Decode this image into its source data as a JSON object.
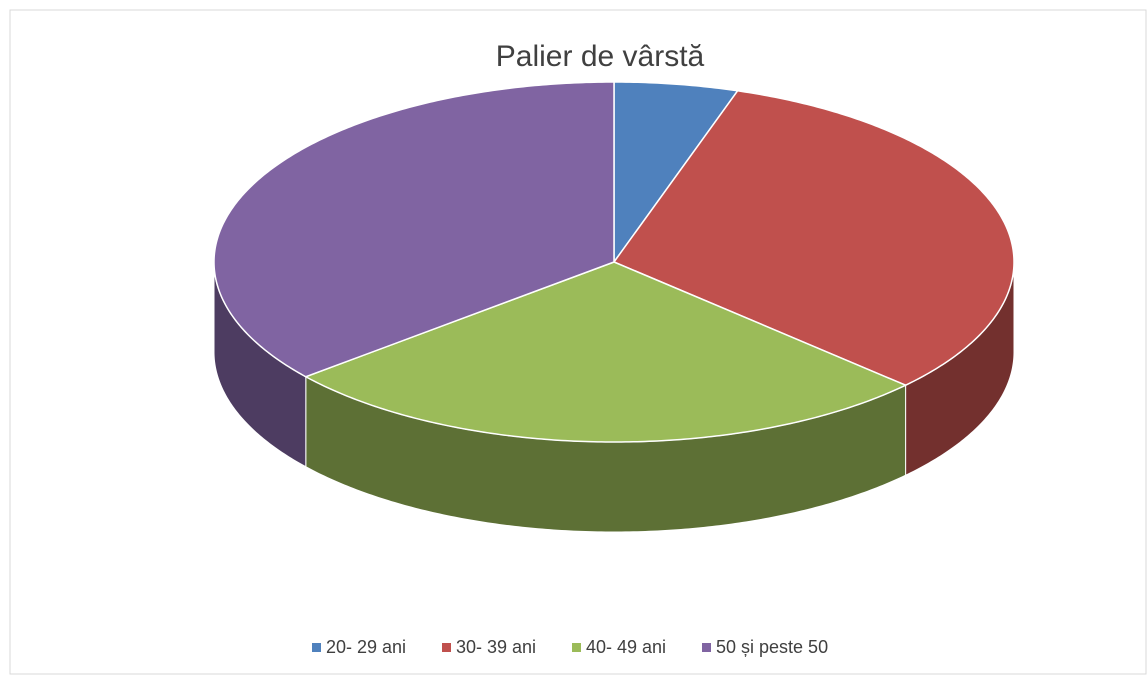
{
  "chart_data": {
    "type": "pie",
    "title": "Palier de vârstă",
    "categories": [
      "20- 29 ani",
      "30- 39 ani",
      "40- 49 ani",
      "50 și peste 50"
    ],
    "values": [
      5,
      32,
      27,
      36
    ],
    "colors": [
      "#4f81bd",
      "#c0504d",
      "#9bbb59",
      "#8064a2"
    ],
    "legend": "bottom"
  }
}
